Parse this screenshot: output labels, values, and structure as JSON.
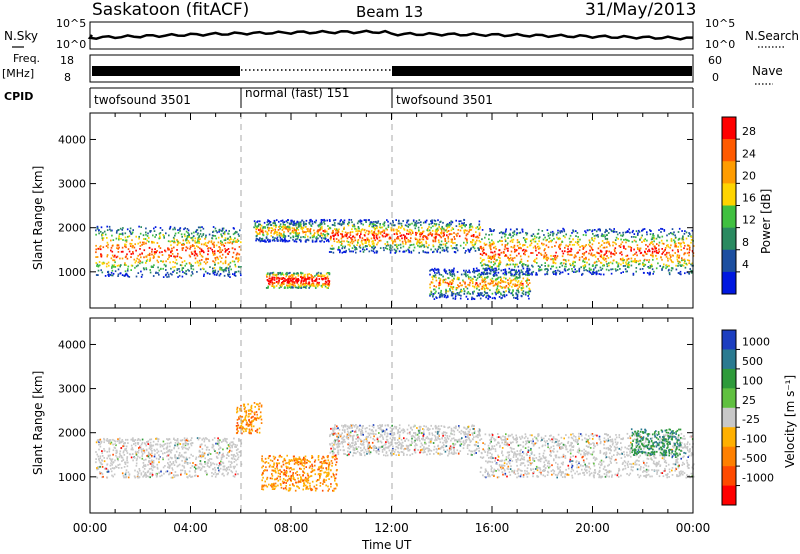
{
  "header": {
    "station": "Saskatoon (fitACF)",
    "beam": "Beam 13",
    "date": "31/May/2013"
  },
  "top_panels": {
    "nsky_label": "N.Sky",
    "nsky_ticks": [
      "10^5",
      "10^0"
    ],
    "nsearch_label": "N.Search",
    "freq_label_1": "Freq.",
    "freq_label_2": "[MHz]",
    "freq_ticks": [
      "18",
      "8"
    ],
    "nave_ticks": [
      "60",
      "0"
    ],
    "nave_label": "Nave",
    "cpid_label": "CPID",
    "cpid_segments": [
      {
        "label": "twofsound 3501",
        "start_hour": 0,
        "end_hour": 6
      },
      {
        "label": "normal (fast) 151",
        "start_hour": 6,
        "end_hour": 12
      },
      {
        "label": "twofsound 3501",
        "start_hour": 12,
        "end_hour": 24
      }
    ]
  },
  "power_colorbar": {
    "title": "Power [dB]",
    "ticks": [
      "28",
      "24",
      "20",
      "16",
      "12",
      "8",
      "4"
    ],
    "colors": [
      "#ff0000",
      "#ff5a00",
      "#ff9c00",
      "#ffd400",
      "#40c040",
      "#2a8a60",
      "#1c4fa0",
      "#0018e0"
    ]
  },
  "velocity_colorbar": {
    "title": "Velocity [m s⁻¹]",
    "ticks": [
      "1000",
      "500",
      "100",
      "25",
      "-25",
      "-100",
      "-500",
      "-1000"
    ],
    "colors": [
      "#1c3ec0",
      "#2a7a90",
      "#2e9a3a",
      "#60c040",
      "#c8c8c8",
      "#ffb000",
      "#ff8000",
      "#ff4a00",
      "#ff0000"
    ]
  },
  "x_axis": {
    "label": "Time UT",
    "ticks": [
      "00:00",
      "04:00",
      "08:00",
      "12:00",
      "16:00",
      "20:00",
      "00:00"
    ]
  },
  "y_axis": {
    "label": "Slant Range [km]",
    "ticks": [
      "4000",
      "3000",
      "2000",
      "1000"
    ]
  },
  "chart_data": [
    {
      "type": "heatmap",
      "name_hint": "power",
      "x_range_hours": [
        0,
        24
      ],
      "y_range_km": [
        180,
        4600
      ],
      "regions": [
        {
          "x0": 0.2,
          "x1": 6.0,
          "y0": 900,
          "y1": 2050,
          "level": "mid-high"
        },
        {
          "x0": 6.5,
          "x1": 9.5,
          "y0": 1700,
          "y1": 2200,
          "level": "mid"
        },
        {
          "x0": 7.0,
          "x1": 9.5,
          "y0": 650,
          "y1": 1000,
          "level": "high"
        },
        {
          "x0": 9.5,
          "x1": 15.5,
          "y0": 1450,
          "y1": 2200,
          "level": "mid-high"
        },
        {
          "x0": 13.5,
          "x1": 17.5,
          "y0": 400,
          "y1": 1100,
          "level": "mid"
        },
        {
          "x0": 15.5,
          "x1": 24.0,
          "y0": 950,
          "y1": 2000,
          "level": "mid-high"
        }
      ]
    },
    {
      "type": "heatmap",
      "name_hint": "velocity",
      "x_range_hours": [
        0,
        24
      ],
      "y_range_km": [
        180,
        4600
      ],
      "regions": [
        {
          "x0": 0.2,
          "x1": 6.0,
          "y0": 1000,
          "y1": 1900,
          "level": "-25..25"
        },
        {
          "x0": 6.8,
          "x1": 9.8,
          "y0": 700,
          "y1": 1500,
          "level": "-100..-500"
        },
        {
          "x0": 5.8,
          "x1": 6.8,
          "y0": 2000,
          "y1": 2700,
          "level": "-100..-500"
        },
        {
          "x0": 9.5,
          "x1": 15.5,
          "y0": 1500,
          "y1": 2200,
          "level": "-25..25"
        },
        {
          "x0": 15.5,
          "x1": 24.0,
          "y0": 1000,
          "y1": 2000,
          "level": "-25..25"
        },
        {
          "x0": 21.5,
          "x1": 23.5,
          "y0": 1500,
          "y1": 2100,
          "level": "100..500"
        }
      ]
    }
  ]
}
